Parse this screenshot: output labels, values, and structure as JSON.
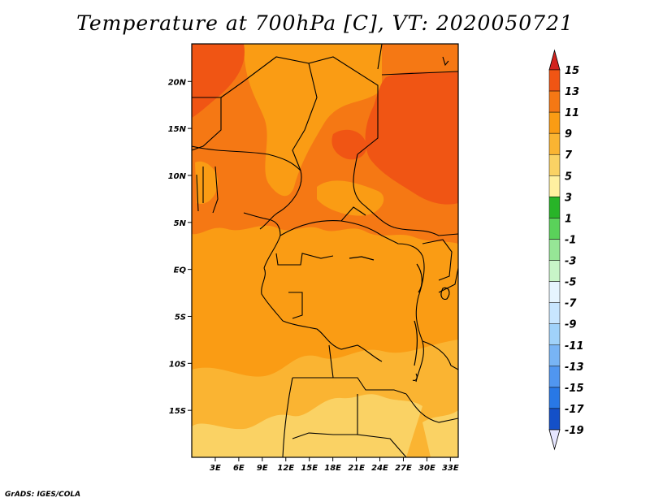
{
  "title": "Temperature at 700hPa [C], VT: 2020050721",
  "credit": "GrADS: IGES/COLA",
  "map": {
    "lon_range": [
      0,
      34
    ],
    "lat_range": [
      -20,
      24
    ],
    "lat_ticks": [
      {
        "value": 20,
        "label": "20N"
      },
      {
        "value": 15,
        "label": "15N"
      },
      {
        "value": 10,
        "label": "10N"
      },
      {
        "value": 5,
        "label": "5N"
      },
      {
        "value": 0,
        "label": "EQ"
      },
      {
        "value": -5,
        "label": "5S"
      },
      {
        "value": -10,
        "label": "10S"
      },
      {
        "value": -15,
        "label": "15S"
      }
    ],
    "lon_ticks": [
      {
        "value": 3,
        "label": "3E"
      },
      {
        "value": 6,
        "label": "6E"
      },
      {
        "value": 9,
        "label": "9E"
      },
      {
        "value": 12,
        "label": "12E"
      },
      {
        "value": 15,
        "label": "15E"
      },
      {
        "value": 18,
        "label": "18E"
      },
      {
        "value": 21,
        "label": "21E"
      },
      {
        "value": 24,
        "label": "24E"
      },
      {
        "value": 27,
        "label": "27E"
      },
      {
        "value": 30,
        "label": "30E"
      },
      {
        "value": 33,
        "label": "33E"
      }
    ]
  },
  "colorbar": {
    "labels": [
      "15",
      "13",
      "11",
      "9",
      "7",
      "5",
      "3",
      "1",
      "-1",
      "-3",
      "-5",
      "-7",
      "-9",
      "-11",
      "-13",
      "-15",
      "-17",
      "-19"
    ],
    "colors_top_to_bottom": [
      "#e8321e",
      "#f05514",
      "#f57814",
      "#fa9c14",
      "#fab432",
      "#fad264",
      "#fff0a0",
      "#28b428",
      "#5ad25a",
      "#96e696",
      "#c8f5c8",
      "#e6f5ff",
      "#c8e6ff",
      "#a0d2fa",
      "#78b4f5",
      "#5096f0",
      "#2878e6",
      "#1450c8",
      "#0a2896",
      "#000064"
    ],
    "top_arrow_color": "#d2231e",
    "bottom_arrow_color": "#e6e6ff"
  }
}
